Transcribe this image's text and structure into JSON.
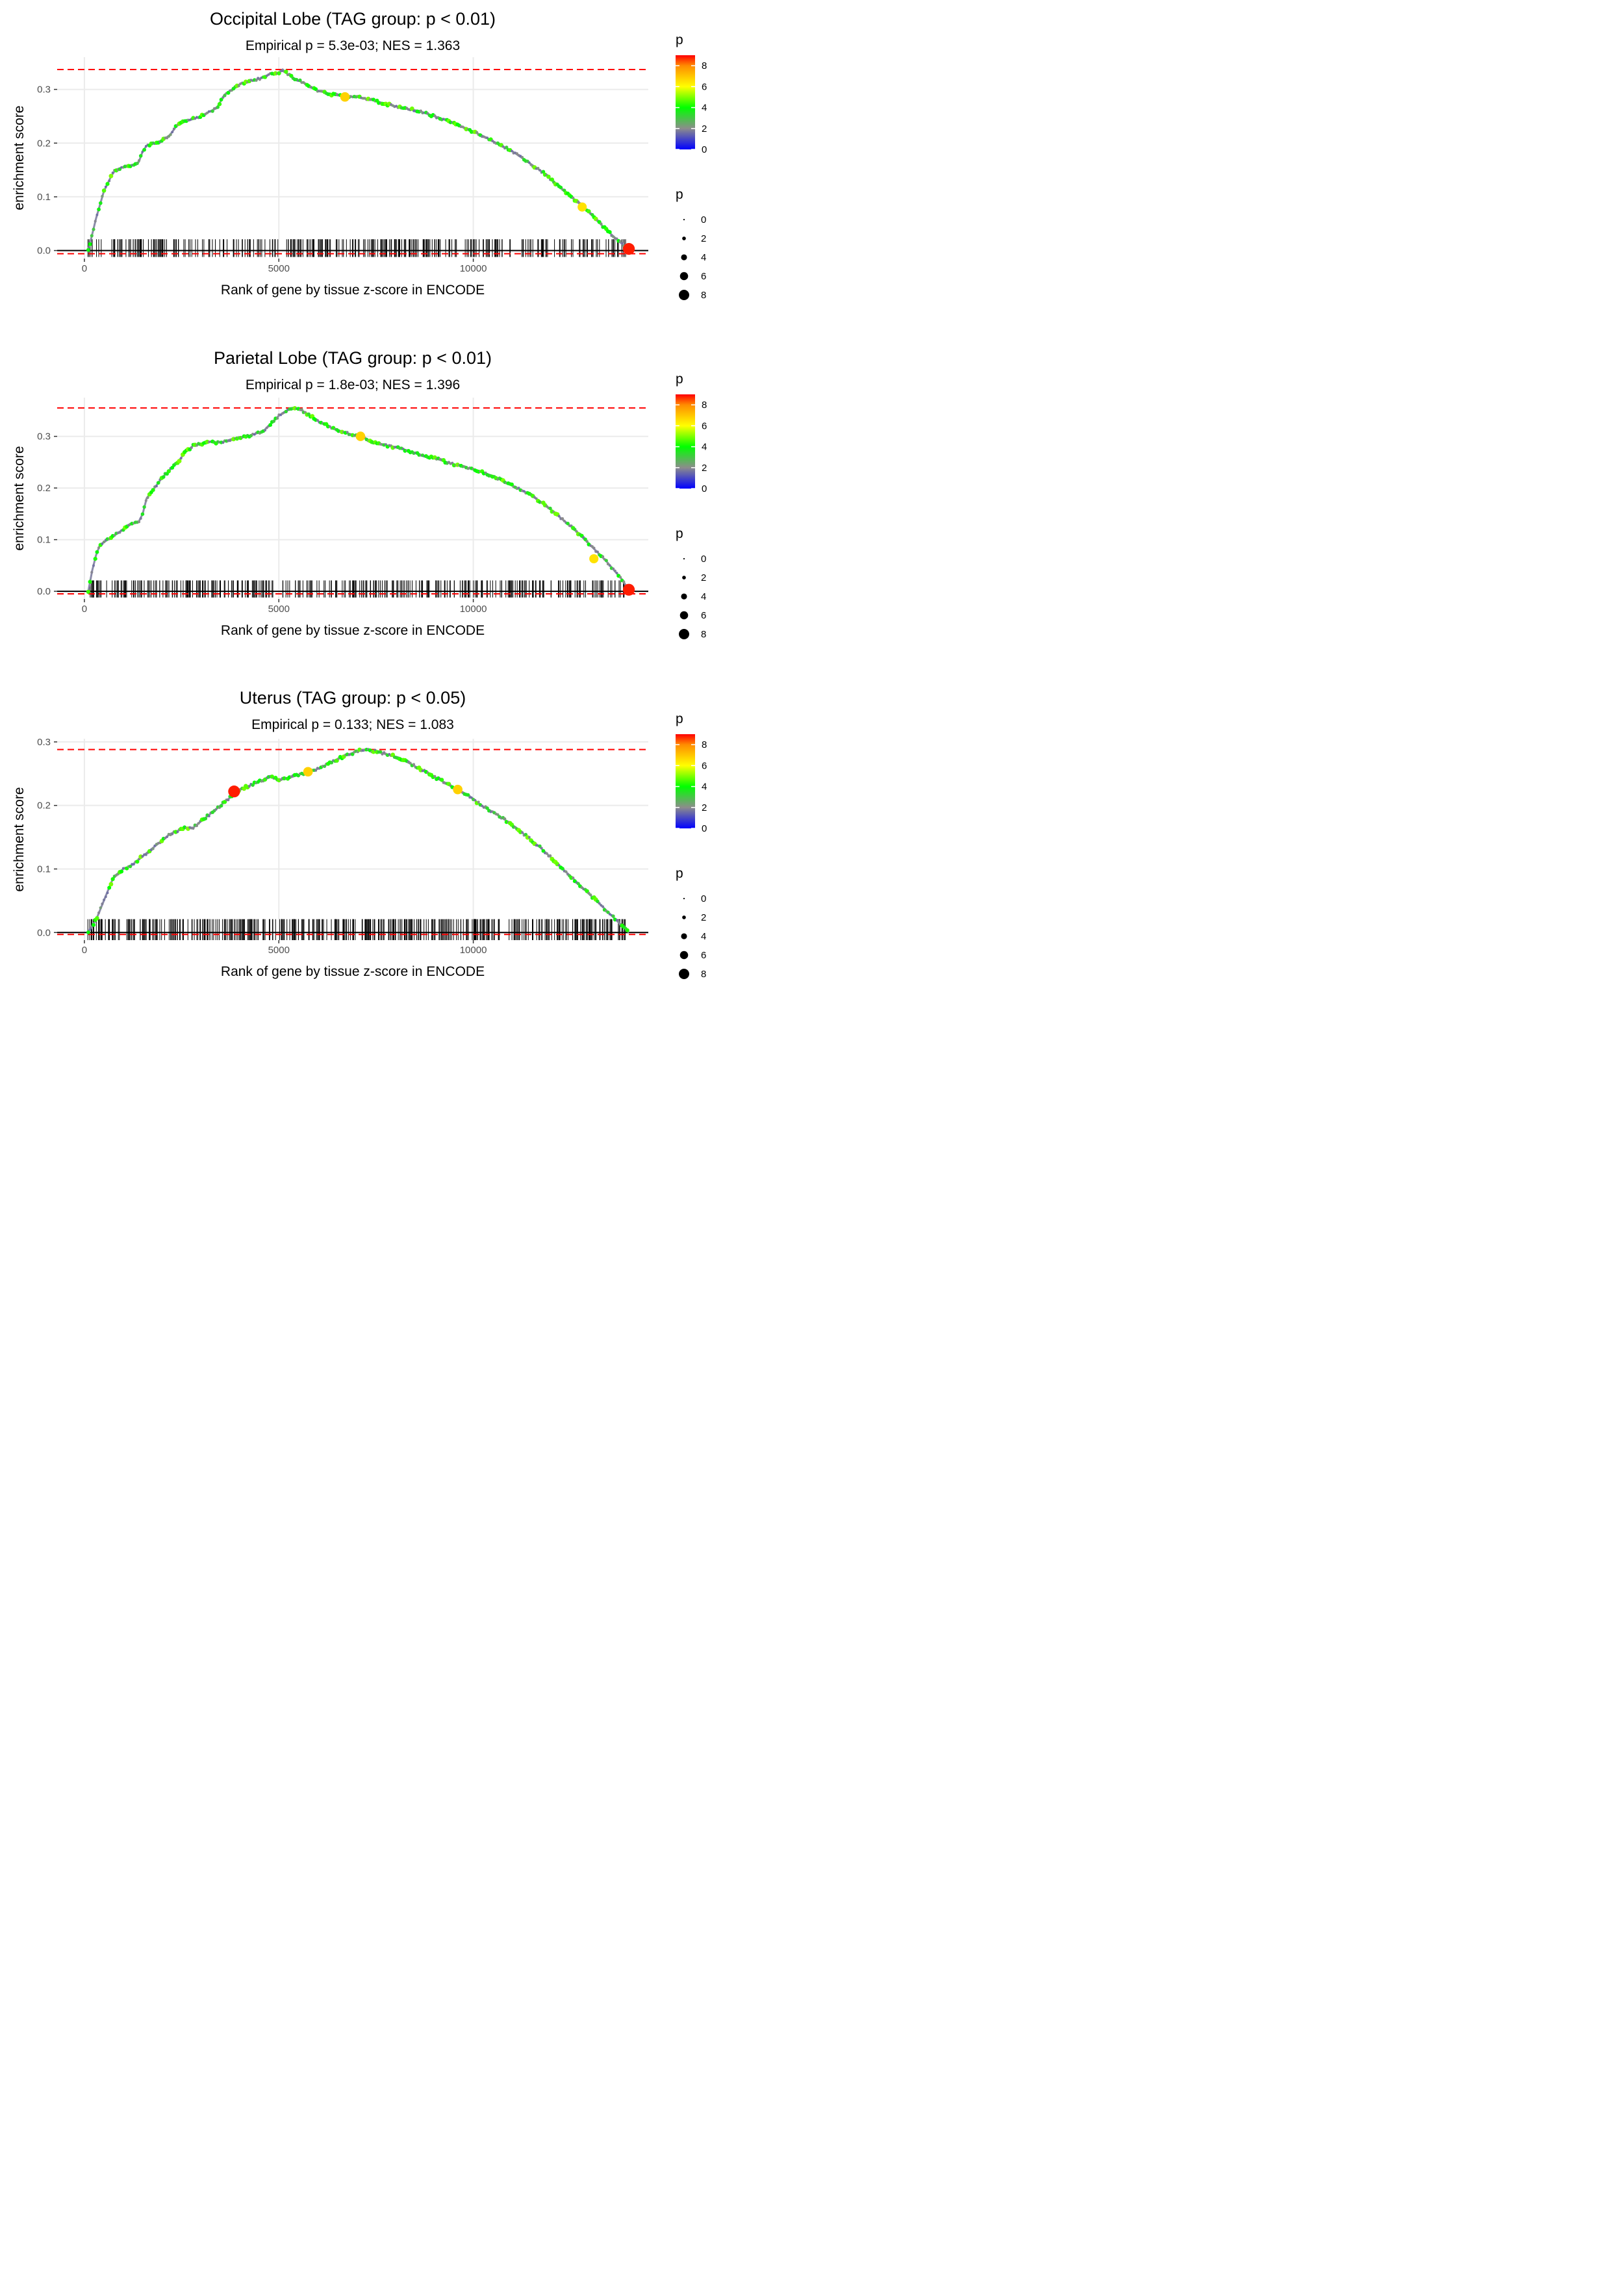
{
  "chart_data": [
    {
      "type": "line",
      "title": "Occipital Lobe (TAG group: p < 0.01)",
      "subtitle": "Empirical p = 5.3e-03; NES = 1.363",
      "xlabel": "Rank of gene by tissue z-score in ENCODE",
      "ylabel": "enrichment score",
      "xlim": [
        -700,
        14500
      ],
      "ylim": [
        -0.015,
        0.36
      ],
      "x_ticks": [
        0,
        5000,
        10000
      ],
      "x_tick_labels": [
        "0",
        "5000",
        "10000"
      ],
      "y_ticks": [
        0.0,
        0.1,
        0.2,
        0.3
      ],
      "y_tick_labels": [
        "0.0",
        "0.1",
        "0.2",
        "0.3"
      ],
      "max_es": 0.337,
      "min_es": -0.006,
      "curve": {
        "x": [
          100,
          200,
          300,
          400,
          500,
          600,
          700,
          800,
          900,
          1000,
          1200,
          1400,
          1500,
          1600,
          1800,
          2000,
          2200,
          2400,
          2600,
          2800,
          3000,
          3200,
          3400,
          3600,
          3800,
          4000,
          4200,
          4400,
          4600,
          4800,
          5000,
          5100,
          5200,
          5400,
          5700,
          6000,
          6400,
          6700,
          7000,
          7400,
          7800,
          8200,
          8600,
          9000,
          9400,
          9800,
          10200,
          10600,
          11000,
          11400,
          11800,
          12200,
          12600,
          13000,
          13400,
          13700,
          14000
        ],
        "y": [
          0.0,
          0.03,
          0.06,
          0.085,
          0.11,
          0.125,
          0.14,
          0.15,
          0.153,
          0.155,
          0.157,
          0.165,
          0.185,
          0.195,
          0.2,
          0.205,
          0.215,
          0.235,
          0.24,
          0.245,
          0.25,
          0.258,
          0.265,
          0.29,
          0.3,
          0.31,
          0.315,
          0.318,
          0.322,
          0.33,
          0.33,
          0.337,
          0.33,
          0.32,
          0.31,
          0.298,
          0.29,
          0.287,
          0.286,
          0.28,
          0.272,
          0.265,
          0.26,
          0.25,
          0.24,
          0.228,
          0.215,
          0.2,
          0.185,
          0.165,
          0.145,
          0.12,
          0.095,
          0.07,
          0.04,
          0.02,
          0.002
        ]
      },
      "highlight_points": [
        {
          "x": 6700,
          "y": 0.286,
          "p": 6.8
        },
        {
          "x": 12800,
          "y": 0.081,
          "p": 6.5
        },
        {
          "x": 14000,
          "y": 0.003,
          "p": 8.8
        }
      ],
      "rug_seed": 11,
      "rug_count": 340,
      "rug_range": [
        80,
        13950
      ]
    },
    {
      "type": "line",
      "title": "Parietal Lobe (TAG group: p < 0.01)",
      "subtitle": "Empirical p = 1.8e-03; NES = 1.396",
      "xlabel": "Rank of gene by tissue z-score in ENCODE",
      "ylabel": "enrichment score",
      "xlim": [
        -700,
        14500
      ],
      "ylim": [
        -0.015,
        0.375
      ],
      "x_ticks": [
        0,
        5000,
        10000
      ],
      "x_tick_labels": [
        "0",
        "5000",
        "10000"
      ],
      "y_ticks": [
        0.0,
        0.1,
        0.2,
        0.3
      ],
      "y_tick_labels": [
        "0.0",
        "0.1",
        "0.2",
        "0.3"
      ],
      "max_es": 0.355,
      "min_es": -0.005,
      "curve": {
        "x": [
          100,
          200,
          300,
          400,
          600,
          800,
          1000,
          1200,
          1400,
          1500,
          1600,
          1800,
          2000,
          2200,
          2400,
          2600,
          2800,
          3000,
          3200,
          3400,
          3600,
          3800,
          4000,
          4200,
          4400,
          4600,
          4800,
          5000,
          5200,
          5400,
          5600,
          5800,
          6000,
          6400,
          6800,
          7100,
          7400,
          7800,
          8200,
          8600,
          9000,
          9400,
          9800,
          10200,
          10600,
          11000,
          11400,
          11800,
          12200,
          12600,
          13000,
          13400,
          13800,
          14000
        ],
        "y": [
          0.0,
          0.04,
          0.07,
          0.09,
          0.1,
          0.11,
          0.12,
          0.13,
          0.135,
          0.15,
          0.18,
          0.2,
          0.22,
          0.235,
          0.25,
          0.27,
          0.282,
          0.285,
          0.29,
          0.288,
          0.29,
          0.295,
          0.297,
          0.3,
          0.305,
          0.31,
          0.325,
          0.34,
          0.35,
          0.355,
          0.35,
          0.34,
          0.33,
          0.315,
          0.305,
          0.3,
          0.29,
          0.282,
          0.275,
          0.265,
          0.258,
          0.248,
          0.24,
          0.232,
          0.22,
          0.205,
          0.19,
          0.17,
          0.145,
          0.12,
          0.09,
          0.06,
          0.025,
          0.003
        ]
      },
      "highlight_points": [
        {
          "x": 7100,
          "y": 0.3,
          "p": 6.8
        },
        {
          "x": 13100,
          "y": 0.063,
          "p": 6.5
        },
        {
          "x": 14000,
          "y": 0.003,
          "p": 8.8
        }
      ],
      "rug_seed": 23,
      "rug_count": 340,
      "rug_range": [
        80,
        13950
      ]
    },
    {
      "type": "line",
      "title": "Uterus (TAG group: p < 0.05)",
      "subtitle": "Empirical p = 0.133; NES = 1.083",
      "xlabel": "Rank of gene by tissue z-score in ENCODE",
      "ylabel": "enrichment score",
      "xlim": [
        -700,
        14500
      ],
      "ylim": [
        -0.012,
        0.305
      ],
      "x_ticks": [
        0,
        5000,
        10000
      ],
      "x_tick_labels": [
        "0",
        "5000",
        "10000"
      ],
      "y_ticks": [
        0.0,
        0.1,
        0.2,
        0.3
      ],
      "y_tick_labels": [
        "0.0",
        "0.1",
        "0.2",
        "0.3"
      ],
      "max_es": 0.288,
      "min_es": -0.003,
      "curve": {
        "x": [
          100,
          200,
          300,
          400,
          500,
          600,
          700,
          800,
          1000,
          1200,
          1400,
          1600,
          1800,
          2000,
          2200,
          2400,
          2600,
          2800,
          3000,
          3200,
          3400,
          3600,
          3800,
          3900,
          4200,
          4500,
          4800,
          5000,
          5200,
          5500,
          5800,
          6100,
          6400,
          6700,
          7000,
          7200,
          7500,
          7800,
          8100,
          8400,
          8700,
          9000,
          9300,
          9600,
          9900,
          10200,
          10500,
          10800,
          11100,
          11400,
          11700,
          12000,
          12300,
          12600,
          12900,
          13200,
          13500,
          13800,
          14000
        ],
        "y": [
          0.0,
          0.01,
          0.02,
          0.035,
          0.05,
          0.065,
          0.08,
          0.09,
          0.1,
          0.105,
          0.115,
          0.125,
          0.135,
          0.145,
          0.155,
          0.16,
          0.165,
          0.165,
          0.175,
          0.185,
          0.195,
          0.205,
          0.215,
          0.222,
          0.23,
          0.238,
          0.245,
          0.24,
          0.242,
          0.248,
          0.253,
          0.26,
          0.27,
          0.278,
          0.285,
          0.288,
          0.285,
          0.28,
          0.275,
          0.265,
          0.255,
          0.245,
          0.235,
          0.225,
          0.215,
          0.2,
          0.19,
          0.178,
          0.165,
          0.15,
          0.135,
          0.118,
          0.1,
          0.083,
          0.065,
          0.048,
          0.03,
          0.012,
          0.0
        ]
      },
      "highlight_points": [
        {
          "x": 3850,
          "y": 0.222,
          "p": 8.8
        },
        {
          "x": 5750,
          "y": 0.253,
          "p": 6.8
        },
        {
          "x": 9600,
          "y": 0.225,
          "p": 6.8
        }
      ],
      "rug_seed": 37,
      "rug_count": 460,
      "rug_range": [
        80,
        13950
      ]
    }
  ],
  "legend": {
    "color_title": "p",
    "color_labels": [
      "8",
      "6",
      "4",
      "2",
      "0"
    ],
    "color_values": [
      8,
      6,
      4,
      2,
      0
    ],
    "color_max": 9,
    "colors": [
      "#0000ff",
      "#8c8c8c",
      "#00ff00",
      "#ffff00",
      "#ff8c00",
      "#ff0000"
    ],
    "size_title": "p",
    "size_labels": [
      "0",
      "2",
      "4",
      "6",
      "8"
    ],
    "size_values": [
      0,
      2,
      4,
      6,
      8
    ]
  },
  "style": {
    "reference_line_color": "#ff0000",
    "grid_color": "#ebebeb",
    "zero_line_color": "#000000",
    "rug_color": "#000000"
  }
}
